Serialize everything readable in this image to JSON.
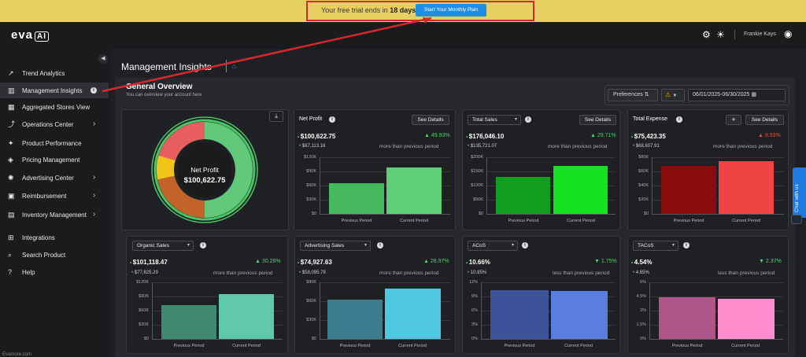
{
  "trial": {
    "text_prefix": "Your free trial ends in ",
    "days": "18 days",
    "button": "Start Your Monthly Plan"
  },
  "header": {
    "logo": "eva",
    "logo_badge": "AI",
    "user_name": "Frankie Kays",
    "icons": [
      "gear-icon",
      "sun-icon",
      "user-icon"
    ]
  },
  "sidebar": {
    "items": [
      {
        "label": "Trend Analytics",
        "icon": "trend-icon"
      },
      {
        "label": "Management Insights",
        "icon": "bar-chart-icon"
      },
      {
        "label": "Aggregated Stores View",
        "icon": "store-icon"
      },
      {
        "label": "Operations Center",
        "icon": "operations-icon"
      },
      {
        "label": "Product Performance",
        "icon": "performance-icon"
      },
      {
        "label": "Pricing Management",
        "icon": "price-tag-icon"
      },
      {
        "label": "Advertising Center",
        "icon": "megaphone-icon"
      },
      {
        "label": "Reimbursement",
        "icon": "reimbursement-icon"
      },
      {
        "label": "Inventory Management",
        "icon": "inventory-icon"
      },
      {
        "label": "Integrations",
        "icon": "integrations-icon"
      },
      {
        "label": "Search Product",
        "icon": "search-icon"
      },
      {
        "label": "Help",
        "icon": "help-icon"
      }
    ],
    "footer": "Evamore.com"
  },
  "page": {
    "title": "Management Insights"
  },
  "overview": {
    "title": "General Overview",
    "subtitle": "You can overview your account here",
    "preferences": "Preferences",
    "date_range": "06/01/2025-06/30/2025",
    "donut": {
      "label": "Net Profit",
      "value": "$100,622.75"
    }
  },
  "cards": {
    "net_profit": {
      "title": "Net Profit",
      "button": "See Details",
      "current": "$100,622.75",
      "previous": "$67,113.16",
      "change": "49.93%",
      "note": "more than previous period",
      "ticks": [
        "$120K",
        "$90K",
        "$60K",
        "$30K",
        "$0"
      ],
      "x": [
        "Previous Period",
        "Current Period"
      ]
    },
    "total_sales": {
      "title": "Total Sales",
      "button": "See Details",
      "current": "$176,046.10",
      "previous": "$135,721.07",
      "change": "29.71%",
      "note": "more than previous period",
      "ticks": [
        "$200K",
        "$150K",
        "$100K",
        "$50K",
        "$0"
      ],
      "x": [
        "Previous Period",
        "Current Period"
      ]
    },
    "total_expense": {
      "title": "Total Expense",
      "button": "See Details",
      "plus": "+",
      "current": "$75,423.35",
      "previous": "$68,607.91",
      "change": "9.93%",
      "note": "more than previous period",
      "ticks": [
        "$80K",
        "$60K",
        "$40K",
        "$20K",
        "$0"
      ],
      "x": [
        "Previous Period",
        "Current Period"
      ]
    },
    "organic_sales": {
      "title": "Organic Sales",
      "current": "$101,118.47",
      "previous": "$77,625.29",
      "change": "30.26%",
      "note": "more than previous period",
      "ticks": [
        "$120K",
        "$90K",
        "$60K",
        "$30K",
        "$0"
      ],
      "x": [
        "Previous Period",
        "Current Period"
      ]
    },
    "advertising_sales": {
      "title": "Advertising Sales",
      "current": "$74,927.63",
      "previous": "$58,095.78",
      "change": "28.97%",
      "note": "more than previous period",
      "ticks": [
        "$90K",
        "$60K",
        "$30K",
        "$0"
      ],
      "x": [
        "Previous Period",
        "Current Period"
      ]
    },
    "acos": {
      "title": "ACoS",
      "current": "10.66%",
      "previous": "10.85%",
      "change": "1.75%",
      "note": "less than previous period",
      "ticks": [
        "12%",
        "9%",
        "6%",
        "3%",
        "0%"
      ],
      "x": [
        "Previous Period",
        "Current Period"
      ]
    },
    "tacos": {
      "title": "TACoS",
      "current": "4.54%",
      "previous": "4.65%",
      "change": "2.37%",
      "note": "less than previous period",
      "ticks": [
        "6%",
        "4.5%",
        "3%",
        "1.5%",
        "0%"
      ],
      "x": [
        "Previous Period",
        "Current Period"
      ]
    }
  },
  "chat": {
    "label": "Chat with us"
  },
  "colors": {
    "accent": "#1f8fe6",
    "up": "#4fcf6f",
    "down": "#e44c4c"
  }
}
